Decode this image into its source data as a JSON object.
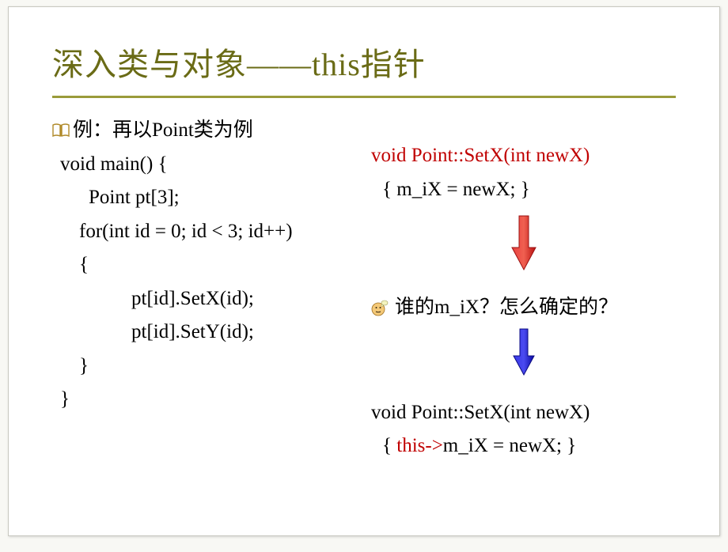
{
  "title_text": "深入类与对象——this指针",
  "title_color": "#6a6b16",
  "hr_color": "#9a9b3a",
  "book_icon_color": "#b08a2a",
  "heading_line": "例：再以Point类为例",
  "left_code": {
    "l1": "void main() {",
    "l2": "Point pt[3];",
    "l3": "for(int id = 0; id < 3; id++)",
    "l4": "{",
    "l5": "pt[id].SetX(id);",
    "l6": "pt[id].SetY(id);",
    "l7": "}",
    "l8": "}"
  },
  "right": {
    "setx_sig": "void Point::SetX(int newX)",
    "setx_body_open": "{  ",
    "setx_body_code": "m_iX = newX;",
    "setx_body_close": " }",
    "question": "谁的m_iX？怎么确定的？",
    "setx2_sig": "void Point::SetX(int newX)",
    "setx2_body_open": "{  ",
    "setx2_this": "this->",
    "setx2_rest": "m_iX = newX; }"
  },
  "colors": {
    "code_red": "#c00000",
    "arrow_red_fill": "#d81e1e",
    "arrow_red_stroke": "#9a1010",
    "arrow_blue_fill": "#1a1ad0",
    "arrow_blue_stroke": "#0a0a80",
    "think_face": "#f4c978",
    "think_bubble": "#f3f3c0"
  },
  "arrow": {
    "red_w": 34,
    "red_h": 72,
    "blue_w": 30,
    "blue_h": 62
  }
}
